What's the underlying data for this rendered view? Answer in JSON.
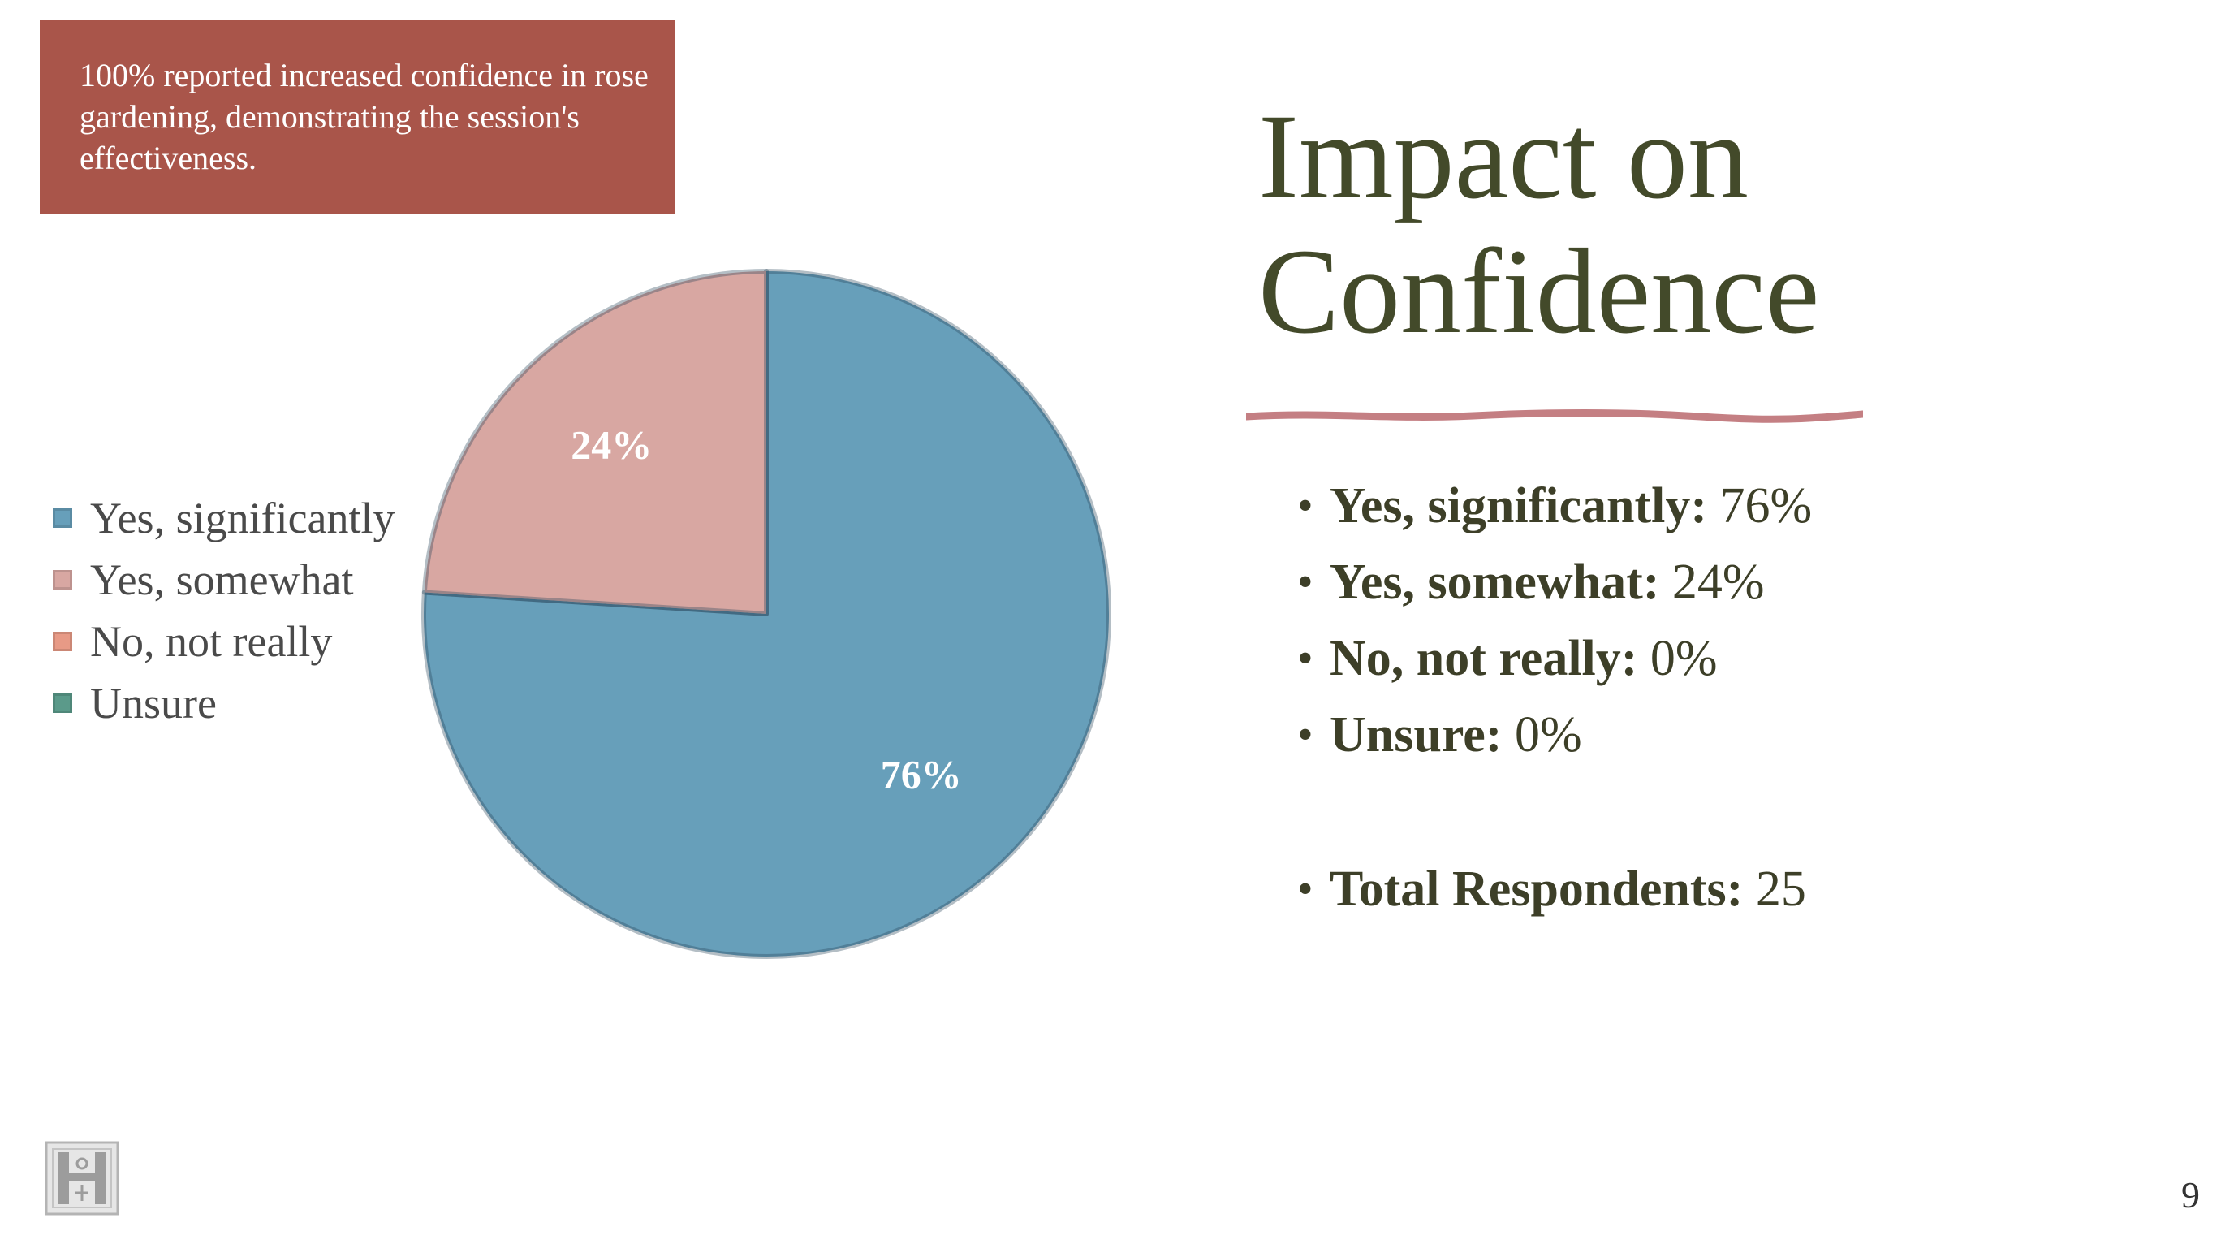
{
  "callout": {
    "text": "100% reported increased confidence in rose gardening, demonstrating the session's effectiveness."
  },
  "title": {
    "line1": "Impact on",
    "line2": "Confidence"
  },
  "bullets": [
    {
      "label": "Yes, significantly:",
      "value": "76%"
    },
    {
      "label": "Yes, somewhat:",
      "value": "24%"
    },
    {
      "label": "No, not really:",
      "value": "0%"
    },
    {
      "label": "Unsure:",
      "value": "0%"
    },
    {
      "label": "Total Respondents:",
      "value": "25"
    }
  ],
  "chart_data": {
    "type": "pie",
    "categories": [
      "Yes, significantly",
      "Yes, somewhat",
      "No, not really",
      "Unsure"
    ],
    "values": [
      76,
      24,
      0,
      0
    ],
    "data_labels": [
      "76%",
      "24%",
      "",
      ""
    ],
    "colors": [
      "#679fba",
      "#d8a7a2",
      "#e79a86",
      "#5b9a8a"
    ],
    "legend_position": "left"
  },
  "colors": {
    "callout_bg": "#a9554a",
    "title": "#434a2a",
    "accent_rule": "#c47f83"
  },
  "logo": {
    "icon": "crest-monogram-icon"
  },
  "page_number": "9"
}
